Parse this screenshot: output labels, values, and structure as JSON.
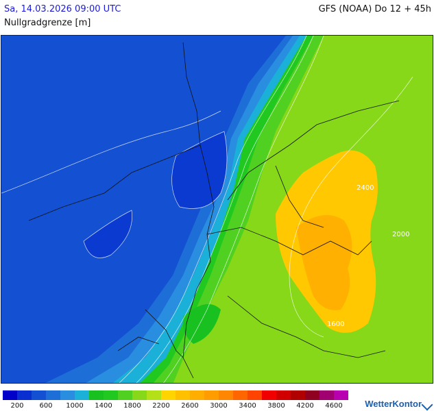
{
  "header": {
    "datetime": "Sa, 14.03.2026 09:00 UTC",
    "parameter": "Nullgradgrenze [m]",
    "model": "GFS (NOAA) Do 12 + 45h"
  },
  "map": {
    "contour_labels": [
      "2000",
      "1600",
      "2400"
    ]
  },
  "legend": {
    "colors": [
      "#0000c8",
      "#0a2fd0",
      "#1450d2",
      "#1e6ed8",
      "#2a8ee0",
      "#1ab0d8",
      "#18c020",
      "#20c820",
      "#50d020",
      "#86d818",
      "#b4e018",
      "#ffd400",
      "#ffc000",
      "#ffae00",
      "#ff9c00",
      "#ff8600",
      "#ff6600",
      "#ff4400",
      "#f00000",
      "#d00000",
      "#b00000",
      "#900020",
      "#a00070",
      "#b800b0"
    ],
    "ticks": [
      "200",
      "600",
      "1000",
      "1400",
      "1800",
      "2200",
      "2600",
      "3000",
      "3400",
      "3800",
      "4200",
      "4600"
    ]
  },
  "brand": {
    "name": "WetterKontor",
    "icon": "wetterkontor-logo-icon"
  }
}
